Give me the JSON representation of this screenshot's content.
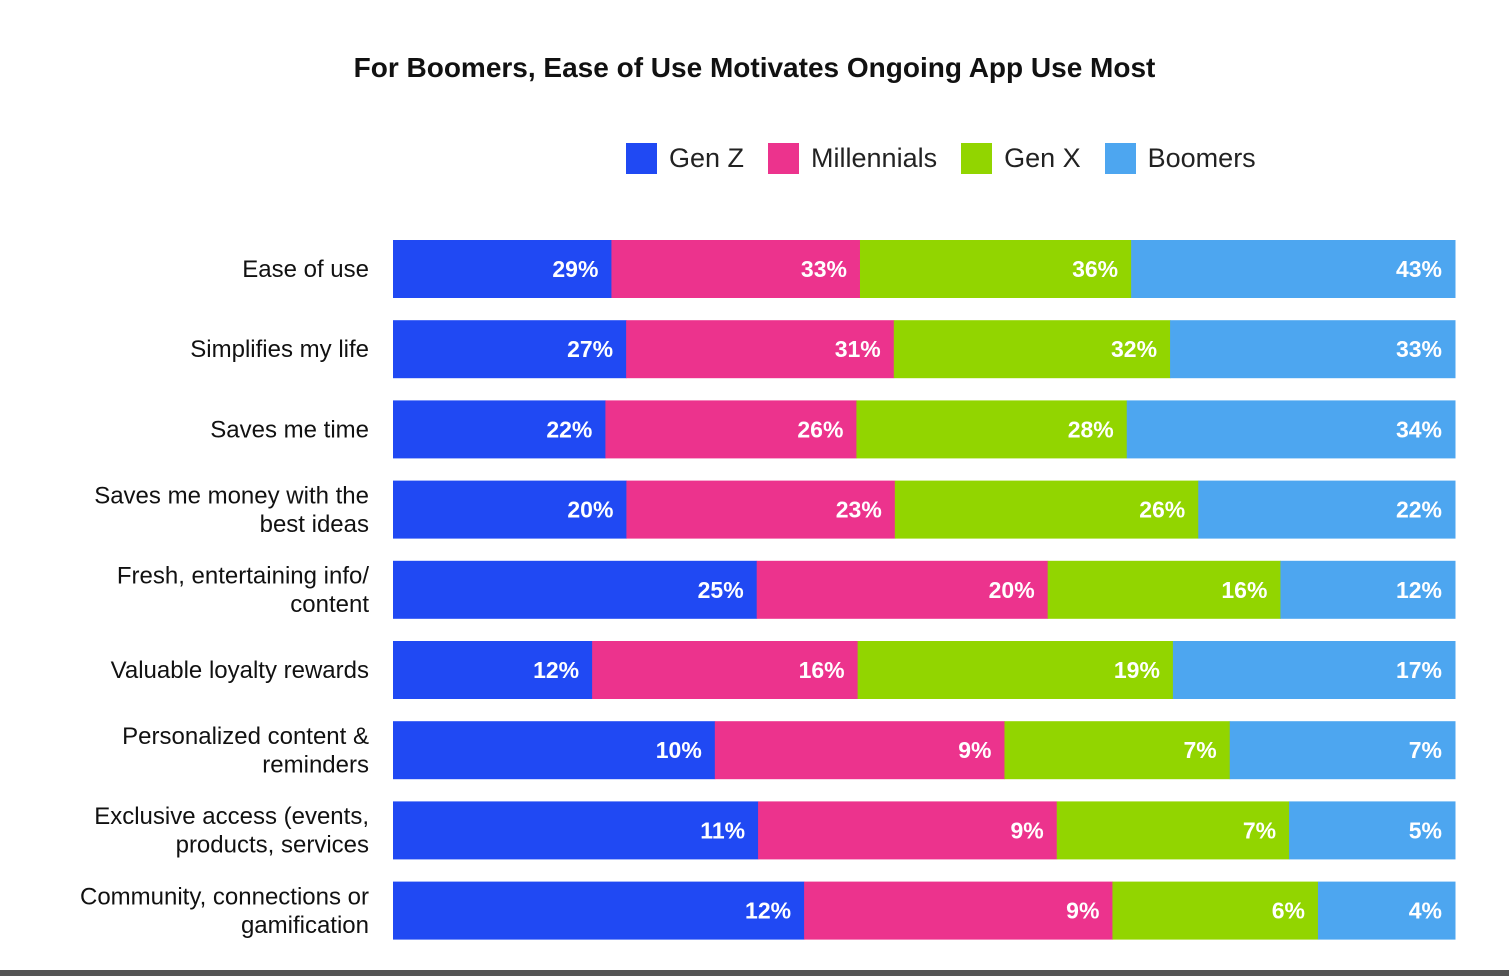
{
  "chart_data": {
    "type": "bar",
    "orientation": "horizontal-stacked",
    "title": "For Boomers, Ease of Use Motivates Ongoing App Use Most",
    "legend_position": "top-right",
    "categories": [
      [
        "Ease of use"
      ],
      [
        "Simplifies my life"
      ],
      [
        "Saves me time"
      ],
      [
        "Saves me money with the",
        "best ideas"
      ],
      [
        "Fresh, entertaining info/",
        "content"
      ],
      [
        "Valuable loyalty rewards"
      ],
      [
        "Personalized content &",
        "reminders"
      ],
      [
        "Exclusive access (events,",
        "products, services"
      ],
      [
        "Community, connections or",
        "gamification"
      ]
    ],
    "series": [
      {
        "name": "Gen Z",
        "color": "#2049F3",
        "values": [
          29,
          27,
          22,
          20,
          25,
          12,
          10,
          11,
          12
        ]
      },
      {
        "name": "Millennials",
        "color": "#EC338D",
        "values": [
          33,
          31,
          26,
          23,
          20,
          16,
          9,
          9,
          9
        ]
      },
      {
        "name": "Gen X",
        "color": "#92D500",
        "values": [
          36,
          32,
          28,
          26,
          16,
          19,
          7,
          7,
          6
        ]
      },
      {
        "name": "Boomers",
        "color": "#4DA6F0",
        "values": [
          43,
          33,
          34,
          22,
          12,
          17,
          7,
          5,
          4
        ]
      }
    ],
    "value_suffix": "%"
  }
}
